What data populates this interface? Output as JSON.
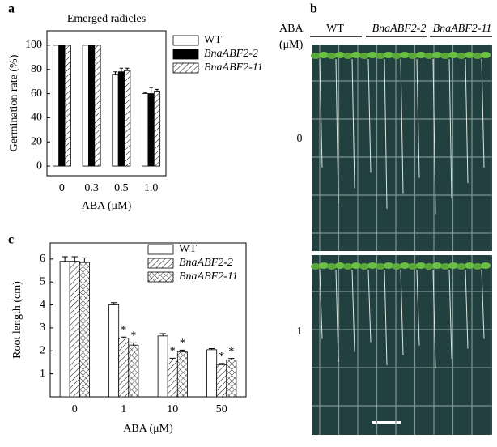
{
  "chart_data": [
    {
      "type": "bar",
      "panel": "a",
      "title": "Emerged radicles",
      "xlabel": "ABA (μM)",
      "ylabel": "Germination rate (%)",
      "categories": [
        "0",
        "0.3",
        "0.5",
        "1.0"
      ],
      "series": [
        {
          "name": "WT",
          "color": "#ffffff",
          "pattern": "none",
          "values": [
            100,
            100,
            76,
            60
          ],
          "errors": [
            0,
            0,
            2,
            1
          ]
        },
        {
          "name": "BnaABF2-2",
          "color": "#000000",
          "pattern": "solid",
          "values": [
            100,
            100,
            78,
            60
          ],
          "errors": [
            0,
            0,
            3,
            5
          ]
        },
        {
          "name": "BnaABF2-11",
          "color": "#ffffff",
          "pattern": "hatch",
          "values": [
            100,
            100,
            79,
            62
          ],
          "errors": [
            0,
            0,
            2,
            1.5
          ]
        }
      ],
      "ylim": [
        -8,
        112
      ],
      "yticks": [
        0,
        20,
        40,
        60,
        80,
        100
      ],
      "grid": false
    },
    {
      "type": "bar",
      "panel": "c",
      "xlabel": "ABA (μM)",
      "ylabel": "Root length (cm)",
      "categories": [
        "0",
        "1",
        "10",
        "50"
      ],
      "series": [
        {
          "name": "WT",
          "color": "#ffffff",
          "pattern": "none",
          "values": [
            5.9,
            4.0,
            2.65,
            2.05
          ],
          "errors": [
            0.2,
            0.1,
            0.1,
            0.05
          ]
        },
        {
          "name": "BnaABF2-2",
          "color": "#ffffff",
          "pattern": "hatch",
          "values": [
            5.9,
            2.55,
            1.6,
            1.4
          ],
          "errors": [
            0.2,
            0.05,
            0.08,
            0.05
          ],
          "annotations": [
            null,
            "*",
            "*",
            "*"
          ]
        },
        {
          "name": "BnaABF2-11",
          "color": "#ffffff",
          "pattern": "crosshatch",
          "values": [
            5.85,
            2.25,
            1.95,
            1.6
          ],
          "errors": [
            0.2,
            0.1,
            0.08,
            0.07
          ],
          "annotations": [
            null,
            "*",
            "*",
            "*"
          ]
        }
      ],
      "ylim": [
        0,
        6.7
      ],
      "yticks": [
        1,
        2,
        3,
        4,
        5,
        6
      ],
      "grid": false
    }
  ],
  "photo_panel": {
    "panel": "b",
    "row_header": [
      "ABA",
      "(μM)"
    ],
    "columns": [
      "WT",
      "BnaABF2-2",
      "BnaABF2-11"
    ],
    "rows": [
      "0",
      "1"
    ]
  }
}
